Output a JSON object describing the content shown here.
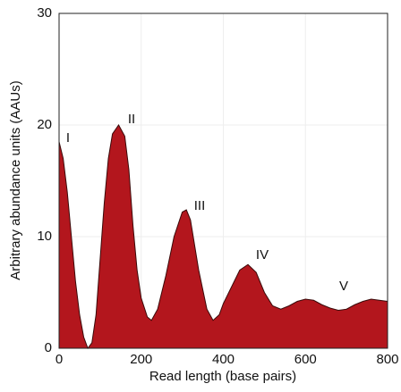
{
  "chart_data": {
    "type": "area",
    "x_label": "Read length (base pairs)",
    "y_label": "Arbitrary abundance units (AAUs)",
    "x": [
      0,
      10,
      20,
      30,
      40,
      50,
      60,
      70,
      80,
      90,
      100,
      110,
      120,
      130,
      145,
      160,
      170,
      180,
      190,
      200,
      215,
      225,
      240,
      260,
      280,
      300,
      310,
      320,
      340,
      360,
      375,
      390,
      400,
      420,
      440,
      460,
      480,
      500,
      520,
      540,
      560,
      580,
      600,
      620,
      640,
      660,
      680,
      700,
      720,
      740,
      760,
      780,
      800
    ],
    "values": [
      18.5,
      17,
      14,
      10,
      6,
      3,
      1,
      0,
      0.5,
      3,
      8,
      13,
      17,
      19.2,
      20,
      19,
      16,
      11,
      7,
      4.5,
      2.8,
      2.5,
      3.5,
      6.5,
      10,
      12.2,
      12.4,
      11.5,
      7,
      3.5,
      2.5,
      3,
      4,
      5.5,
      7,
      7.5,
      6.8,
      5,
      3.8,
      3.5,
      3.8,
      4.2,
      4.4,
      4.3,
      3.9,
      3.6,
      3.4,
      3.5,
      3.9,
      4.2,
      4.4,
      4.3,
      4.2
    ],
    "color": "#b3161d",
    "annotations": [
      "I",
      "II",
      "III",
      "IV",
      "V"
    ],
    "xlim": [
      0,
      800
    ],
    "xticks": [
      0,
      200,
      400,
      600,
      800
    ],
    "ylim": [
      0,
      30
    ],
    "yticks": [
      0,
      10,
      20,
      30
    ],
    "grid": true
  }
}
